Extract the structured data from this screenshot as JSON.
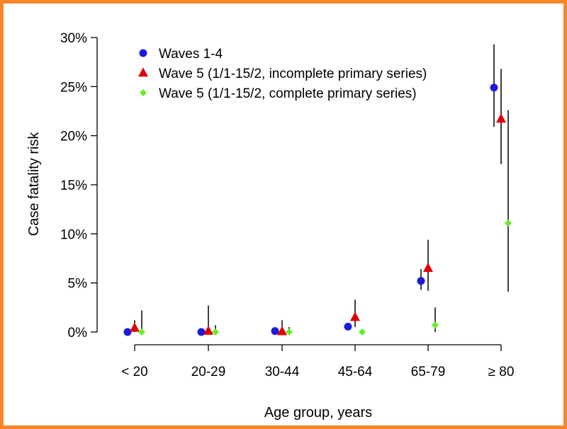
{
  "page": {
    "border_color": "#f5862c"
  },
  "chart_data": {
    "type": "scatter",
    "title": "",
    "xlabel": "Age group, years",
    "ylabel": "Case fatality risk",
    "categories": [
      "< 20",
      "20-29",
      "30-44",
      "45-64",
      "65-79",
      "≥ 80"
    ],
    "ylim": [
      0,
      30
    ],
    "yticks": [
      0,
      5,
      10,
      15,
      20,
      25,
      30
    ],
    "ytick_labels": [
      "0%",
      "5%",
      "10%",
      "15%",
      "20%",
      "25%",
      "30%"
    ],
    "grid": false,
    "legend_position": "top-left",
    "series": [
      {
        "name": "Waves 1-4",
        "marker": "circle",
        "color": "#1a1adb",
        "values": [
          0.0,
          0.0,
          0.1,
          0.55,
          5.2,
          24.9
        ],
        "ci_lower": [
          null,
          null,
          null,
          null,
          4.3,
          20.9
        ],
        "ci_upper": [
          null,
          null,
          null,
          null,
          6.4,
          29.3
        ]
      },
      {
        "name": "Wave 5 (1/1-15/2, incomplete primary series)",
        "marker": "triangle",
        "color": "#e00000",
        "values": [
          0.4,
          0.1,
          0.05,
          1.5,
          6.5,
          21.7
        ],
        "ci_lower": [
          0.0,
          0.0,
          0.0,
          0.5,
          4.2,
          17.1
        ],
        "ci_upper": [
          1.2,
          2.7,
          1.2,
          3.3,
          9.4,
          26.8
        ]
      },
      {
        "name": "Wave 5 (1/1-15/2, complete primary series)",
        "marker": "diamond",
        "color": "#66ee22",
        "values": [
          0.0,
          0.0,
          0.0,
          0.0,
          0.7,
          11.1
        ],
        "ci_lower": [
          0.0,
          0.0,
          0.0,
          0.0,
          0.0,
          4.1
        ],
        "ci_upper": [
          2.2,
          0.7,
          0.5,
          0.3,
          2.5,
          22.6
        ]
      }
    ]
  }
}
